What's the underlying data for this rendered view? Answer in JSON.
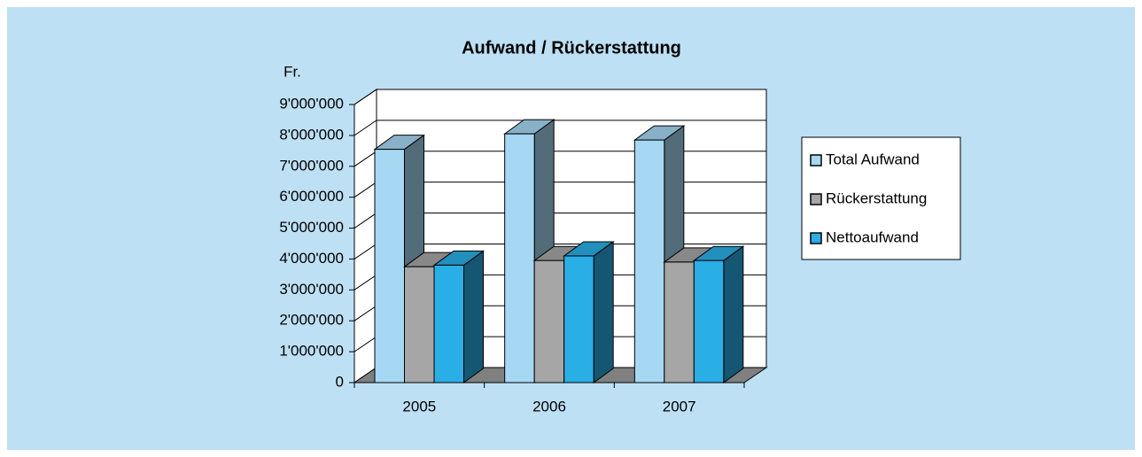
{
  "chart_data": {
    "type": "bar3d",
    "title": "Aufwand / Rückerstattung",
    "y_label": "Fr.",
    "categories": [
      "2005",
      "2006",
      "2007"
    ],
    "series": [
      {
        "name": "Total Aufwand",
        "color": "#a6d8f4",
        "values": [
          7550000,
          8050000,
          7850000
        ]
      },
      {
        "name": "Rückerstattung",
        "color": "#a6a6a6",
        "values": [
          3750000,
          3950000,
          3900000
        ]
      },
      {
        "name": "Nettoaufwand",
        "color": "#2aaee6",
        "values": [
          3800000,
          4100000,
          3950000
        ]
      }
    ],
    "ylim": [
      0,
      9000000
    ],
    "yticks": [
      0,
      {
        "value": 1000000,
        "label": "1'000'000"
      },
      {
        "value": 2000000,
        "label": "2'000'000"
      },
      {
        "value": 3000000,
        "label": "3'000'000"
      },
      {
        "value": 4000000,
        "label": "4'000'000"
      },
      {
        "value": 5000000,
        "label": "5'000'000"
      },
      {
        "value": 6000000,
        "label": "6'000'000"
      },
      {
        "value": 7000000,
        "label": "7'000'000"
      },
      {
        "value": 8000000,
        "label": "8'000'000"
      },
      {
        "value": 9000000,
        "label": "9'000'000"
      }
    ],
    "grid": true,
    "legend": "right"
  }
}
